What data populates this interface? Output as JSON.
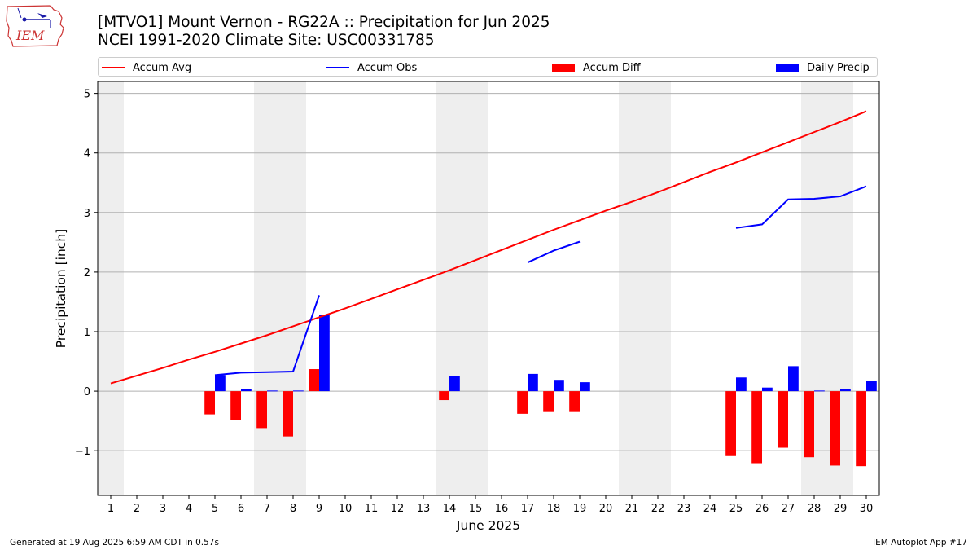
{
  "header": {
    "title": "[MTVO1] Mount Vernon - RG22A :: Precipitation for Jun 2025",
    "subtitle": "NCEI 1991-2020 Climate Site: USC00331785",
    "logo_text": "IEM"
  },
  "legend": {
    "items": [
      {
        "label": "Accum Avg",
        "kind": "line",
        "color": "#ff0000"
      },
      {
        "label": "Accum Obs",
        "kind": "line",
        "color": "#0000ff"
      },
      {
        "label": "Accum Diff",
        "kind": "bar",
        "color": "#ff0000"
      },
      {
        "label": "Daily Precip",
        "kind": "bar",
        "color": "#0000ff"
      }
    ]
  },
  "footer": {
    "generated": "Generated at 19 Aug 2025 6:59 AM CDT in 0.57s",
    "app": "IEM Autoplot App #17"
  },
  "chart_data": {
    "type": "bar",
    "xlabel": "June 2025",
    "ylabel": "Precipitation [inch]",
    "ylim": [
      -1.75,
      5.2
    ],
    "xlim": [
      0.5,
      30.5
    ],
    "x_ticks": [
      1,
      2,
      3,
      4,
      5,
      6,
      7,
      8,
      9,
      10,
      11,
      12,
      13,
      14,
      15,
      16,
      17,
      18,
      19,
      20,
      21,
      22,
      23,
      24,
      25,
      26,
      27,
      28,
      29,
      30
    ],
    "y_ticks": [
      -1,
      0,
      1,
      2,
      3,
      4,
      5
    ],
    "y_tick_labels": [
      "−1",
      "0",
      "1",
      "2",
      "3",
      "4",
      "5"
    ],
    "grid": "horizontal",
    "weekend_shading": [
      [
        0.5,
        1.5
      ],
      [
        6.5,
        8.5
      ],
      [
        13.5,
        15.5
      ],
      [
        20.5,
        22.5
      ],
      [
        27.5,
        29.5
      ]
    ],
    "shading_color": "#eeeeee",
    "series": [
      {
        "name": "Accum Avg",
        "kind": "line",
        "color": "#ff0000",
        "points": [
          [
            1,
            0.13
          ],
          [
            2,
            0.26
          ],
          [
            3,
            0.39
          ],
          [
            4,
            0.53
          ],
          [
            5,
            0.66
          ],
          [
            6,
            0.8
          ],
          [
            7,
            0.94
          ],
          [
            8,
            1.09
          ],
          [
            9,
            1.24
          ],
          [
            10,
            1.39
          ],
          [
            11,
            1.55
          ],
          [
            12,
            1.71
          ],
          [
            13,
            1.87
          ],
          [
            14,
            2.03
          ],
          [
            15,
            2.2
          ],
          [
            16,
            2.37
          ],
          [
            17,
            2.54
          ],
          [
            18,
            2.71
          ],
          [
            19,
            2.87
          ],
          [
            20,
            3.03
          ],
          [
            21,
            3.18
          ],
          [
            22,
            3.34
          ],
          [
            23,
            3.51
          ],
          [
            24,
            3.68
          ],
          [
            25,
            3.84
          ],
          [
            26,
            4.01
          ],
          [
            27,
            4.18
          ],
          [
            28,
            4.35
          ],
          [
            29,
            4.52
          ],
          [
            30,
            4.7
          ]
        ]
      },
      {
        "name": "Accum Obs",
        "kind": "line",
        "color": "#0000ff",
        "segments": [
          [
            [
              5,
              0.27
            ],
            [
              6,
              0.31
            ],
            [
              7,
              0.32
            ],
            [
              8,
              0.33
            ],
            [
              9,
              1.61
            ]
          ],
          [
            [
              17,
              2.16
            ],
            [
              18,
              2.36
            ],
            [
              19,
              2.51
            ]
          ],
          [
            [
              25,
              2.74
            ],
            [
              26,
              2.8
            ],
            [
              27,
              3.22
            ],
            [
              28,
              3.23
            ],
            [
              29,
              3.27
            ],
            [
              30,
              3.44
            ]
          ]
        ]
      },
      {
        "name": "Accum Diff",
        "kind": "bar",
        "color": "#ff0000",
        "points": [
          [
            5,
            -0.39
          ],
          [
            6,
            -0.49
          ],
          [
            7,
            -0.62
          ],
          [
            8,
            -0.76
          ],
          [
            9,
            0.37
          ],
          [
            14,
            -0.15
          ],
          [
            17,
            -0.38
          ],
          [
            18,
            -0.35
          ],
          [
            19,
            -0.35
          ],
          [
            25,
            -1.09
          ],
          [
            26,
            -1.21
          ],
          [
            27,
            -0.95
          ],
          [
            28,
            -1.11
          ],
          [
            29,
            -1.25
          ],
          [
            30,
            -1.26
          ]
        ]
      },
      {
        "name": "Daily Precip",
        "kind": "bar",
        "color": "#0000ff",
        "points": [
          [
            5,
            0.27
          ],
          [
            6,
            0.04
          ],
          [
            7,
            0.01
          ],
          [
            8,
            0.01
          ],
          [
            9,
            1.28
          ],
          [
            14,
            0.26
          ],
          [
            17,
            0.29
          ],
          [
            18,
            0.19
          ],
          [
            19,
            0.15
          ],
          [
            25,
            0.23
          ],
          [
            26,
            0.06
          ],
          [
            27,
            0.42
          ],
          [
            28,
            0.01
          ],
          [
            29,
            0.04
          ],
          [
            30,
            0.17
          ]
        ]
      }
    ]
  }
}
